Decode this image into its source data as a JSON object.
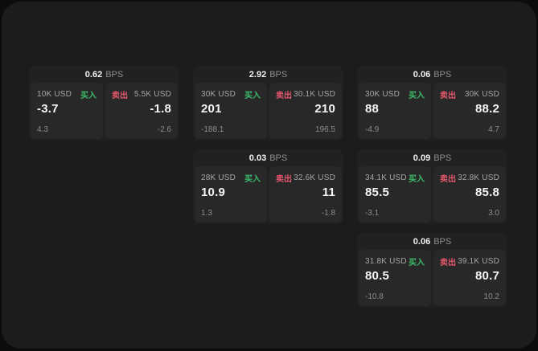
{
  "labels": {
    "bps_suffix": "BPS",
    "buy": "买入",
    "sell": "卖出"
  },
  "colors": {
    "page_bg": "#0c0c0c",
    "panel_bg": "#1c1c1c",
    "card_bg": "#212121",
    "tile_bg": "#282828",
    "text_primary": "#f5f5f5",
    "text_secondary": "#a6a6a6",
    "text_muted": "#8c8c8c",
    "buy_green": "#3cba6c",
    "sell_red": "#e0566b"
  },
  "cards": [
    {
      "bps": "0.62",
      "buy": {
        "amount": "10K USD",
        "price": "-3.7",
        "delta": "4.3"
      },
      "sell": {
        "amount": "5.5K USD",
        "price": "-1.8",
        "delta": "-2.6"
      }
    },
    {
      "bps": "2.92",
      "buy": {
        "amount": "30K USD",
        "price": "201",
        "delta": "-188.1"
      },
      "sell": {
        "amount": "30.1K USD",
        "price": "210",
        "delta": "196.5"
      }
    },
    {
      "bps": "0.06",
      "buy": {
        "amount": "30K USD",
        "price": "88",
        "delta": "-4.9"
      },
      "sell": {
        "amount": "30K USD",
        "price": "88.2",
        "delta": "4.7"
      }
    },
    {
      "bps": "0.03",
      "buy": {
        "amount": "28K USD",
        "price": "10.9",
        "delta": "1.3"
      },
      "sell": {
        "amount": "32.6K USD",
        "price": "11",
        "delta": "-1.8"
      }
    },
    {
      "bps": "0.09",
      "buy": {
        "amount": "34.1K USD",
        "price": "85.5",
        "delta": "-3.1"
      },
      "sell": {
        "amount": "32.8K USD",
        "price": "85.8",
        "delta": "3.0"
      }
    },
    {
      "bps": "0.06",
      "buy": {
        "amount": "31.8K USD",
        "price": "80.5",
        "delta": "-10.8"
      },
      "sell": {
        "amount": "39.1K USD",
        "price": "80.7",
        "delta": "10.2"
      }
    }
  ]
}
